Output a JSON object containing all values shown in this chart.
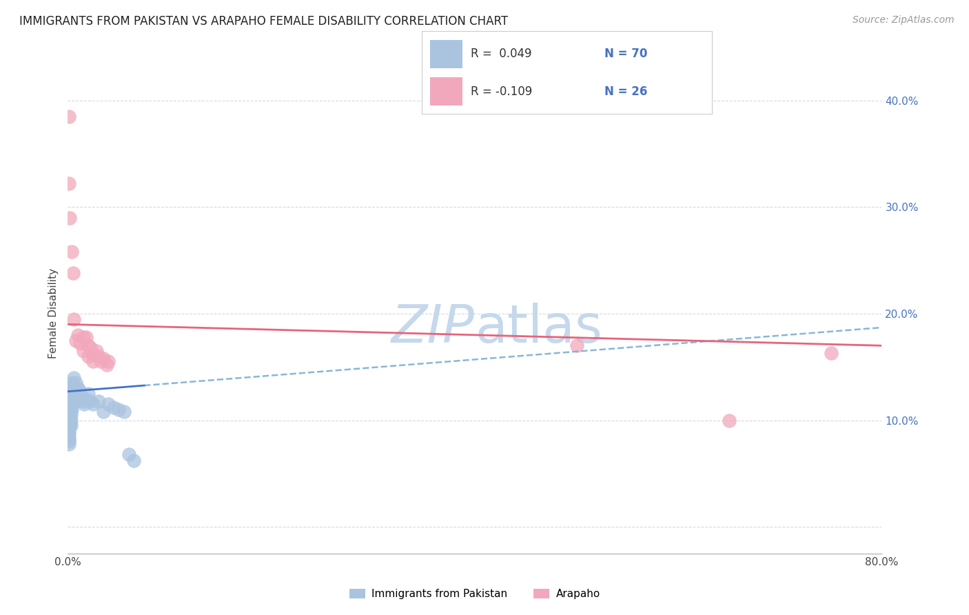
{
  "title": "IMMIGRANTS FROM PAKISTAN VS ARAPAHO FEMALE DISABILITY CORRELATION CHART",
  "source": "Source: ZipAtlas.com",
  "ylabel": "Female Disability",
  "watermark_zip": "ZIP",
  "watermark_atlas": "atlas",
  "blue_R": 0.049,
  "blue_N": 70,
  "pink_R": -0.109,
  "pink_N": 26,
  "xlim": [
    0.0,
    0.8
  ],
  "ylim": [
    -0.025,
    0.425
  ],
  "yticks": [
    0.0,
    0.1,
    0.2,
    0.3,
    0.4
  ],
  "right_ytick_labels": [
    "",
    "10.0%",
    "20.0%",
    "30.0%",
    "40.0%"
  ],
  "xtick_positions": [
    0.0,
    0.8
  ],
  "xtick_labels": [
    "0.0%",
    "80.0%"
  ],
  "blue_dot_color": "#aac4e0",
  "pink_dot_color": "#f2a8bc",
  "blue_line_color": "#4472c4",
  "pink_line_color": "#e8637a",
  "blue_dashed_color": "#7aafd4",
  "title_fontsize": 12,
  "source_fontsize": 10,
  "watermark_color": "#c5d8ec",
  "grid_color": "#d0d0d0",
  "background_color": "#ffffff",
  "blue_scatter": [
    [
      0.001,
      0.13
    ],
    [
      0.001,
      0.125
    ],
    [
      0.001,
      0.12
    ],
    [
      0.001,
      0.115
    ],
    [
      0.001,
      0.113
    ],
    [
      0.001,
      0.112
    ],
    [
      0.001,
      0.11
    ],
    [
      0.001,
      0.108
    ],
    [
      0.001,
      0.105
    ],
    [
      0.001,
      0.103
    ],
    [
      0.001,
      0.1
    ],
    [
      0.001,
      0.098
    ],
    [
      0.001,
      0.095
    ],
    [
      0.001,
      0.093
    ],
    [
      0.001,
      0.09
    ],
    [
      0.001,
      0.088
    ],
    [
      0.001,
      0.085
    ],
    [
      0.001,
      0.082
    ],
    [
      0.001,
      0.08
    ],
    [
      0.001,
      0.078
    ],
    [
      0.002,
      0.128
    ],
    [
      0.002,
      0.122
    ],
    [
      0.002,
      0.118
    ],
    [
      0.002,
      0.115
    ],
    [
      0.002,
      0.112
    ],
    [
      0.002,
      0.108
    ],
    [
      0.002,
      0.105
    ],
    [
      0.002,
      0.102
    ],
    [
      0.002,
      0.098
    ],
    [
      0.002,
      0.095
    ],
    [
      0.003,
      0.125
    ],
    [
      0.003,
      0.12
    ],
    [
      0.003,
      0.115
    ],
    [
      0.003,
      0.11
    ],
    [
      0.003,
      0.105
    ],
    [
      0.003,
      0.1
    ],
    [
      0.003,
      0.095
    ],
    [
      0.004,
      0.135
    ],
    [
      0.004,
      0.128
    ],
    [
      0.004,
      0.122
    ],
    [
      0.004,
      0.115
    ],
    [
      0.004,
      0.11
    ],
    [
      0.005,
      0.132
    ],
    [
      0.005,
      0.125
    ],
    [
      0.005,
      0.118
    ],
    [
      0.006,
      0.14
    ],
    [
      0.006,
      0.13
    ],
    [
      0.006,
      0.122
    ],
    [
      0.007,
      0.128
    ],
    [
      0.007,
      0.118
    ],
    [
      0.008,
      0.135
    ],
    [
      0.009,
      0.125
    ],
    [
      0.01,
      0.13
    ],
    [
      0.011,
      0.128
    ],
    [
      0.012,
      0.125
    ],
    [
      0.013,
      0.12
    ],
    [
      0.015,
      0.118
    ],
    [
      0.016,
      0.115
    ],
    [
      0.018,
      0.12
    ],
    [
      0.02,
      0.125
    ],
    [
      0.022,
      0.118
    ],
    [
      0.025,
      0.115
    ],
    [
      0.03,
      0.118
    ],
    [
      0.035,
      0.108
    ],
    [
      0.04,
      0.115
    ],
    [
      0.045,
      0.112
    ],
    [
      0.05,
      0.11
    ],
    [
      0.055,
      0.108
    ],
    [
      0.06,
      0.068
    ],
    [
      0.065,
      0.062
    ]
  ],
  "pink_scatter": [
    [
      0.001,
      0.385
    ],
    [
      0.001,
      0.322
    ],
    [
      0.002,
      0.29
    ],
    [
      0.004,
      0.258
    ],
    [
      0.005,
      0.238
    ],
    [
      0.006,
      0.195
    ],
    [
      0.008,
      0.175
    ],
    [
      0.01,
      0.18
    ],
    [
      0.012,
      0.172
    ],
    [
      0.015,
      0.178
    ],
    [
      0.015,
      0.165
    ],
    [
      0.018,
      0.178
    ],
    [
      0.02,
      0.17
    ],
    [
      0.02,
      0.16
    ],
    [
      0.022,
      0.168
    ],
    [
      0.025,
      0.162
    ],
    [
      0.025,
      0.155
    ],
    [
      0.028,
      0.165
    ],
    [
      0.03,
      0.16
    ],
    [
      0.032,
      0.155
    ],
    [
      0.035,
      0.158
    ],
    [
      0.038,
      0.152
    ],
    [
      0.04,
      0.155
    ],
    [
      0.5,
      0.17
    ],
    [
      0.65,
      0.1
    ],
    [
      0.75,
      0.163
    ]
  ],
  "legend_blue_label": "R =  0.049",
  "legend_pink_label": "R = -0.109",
  "legend_blue_n": "N = 70",
  "legend_pink_n": "N = 26"
}
